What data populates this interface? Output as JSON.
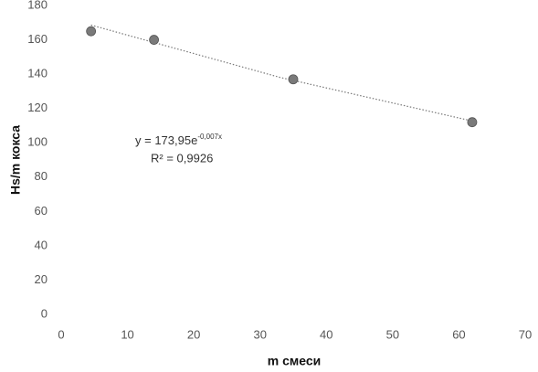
{
  "chart_data": {
    "type": "scatter",
    "x_label": "m смеси",
    "y_label": "Hs/m кокса",
    "x": [
      4.5,
      14,
      35,
      62
    ],
    "values": [
      165,
      160,
      137,
      112
    ],
    "color": "#7a7a7a",
    "xlim": [
      0,
      70
    ],
    "xticks": [
      0,
      10,
      20,
      30,
      40,
      50,
      60,
      70
    ],
    "ylim": [
      0,
      180
    ],
    "yticks": [
      0,
      20,
      40,
      60,
      80,
      100,
      120,
      140,
      160,
      180
    ],
    "grid": false,
    "trendline": {
      "x": [
        4.5,
        33,
        62
      ],
      "values": [
        168.6,
        138.1,
        112.7
      ],
      "color": "#777"
    },
    "equation": "y = 173,95e",
    "equation_exponent": "-0,007x",
    "r_squared": "R² = 0,9926"
  }
}
